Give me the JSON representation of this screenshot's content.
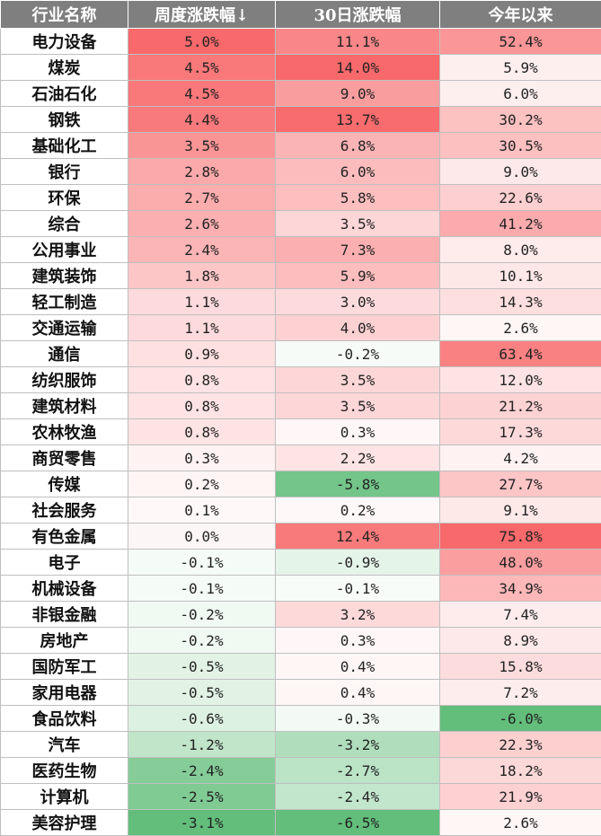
{
  "headers": [
    "行业名称",
    "周度涨跌幅↓",
    "30日涨跌幅",
    "今年以来"
  ],
  "colors": {
    "positive": "#f8696b",
    "negative": "#63be7b",
    "header_bg": "#7f7f7f"
  },
  "rows": [
    {
      "name": "电力设备",
      "week": "5.0%",
      "d30": "11.1%",
      "ytd": "52.4%"
    },
    {
      "name": "煤炭",
      "week": "4.5%",
      "d30": "14.0%",
      "ytd": "5.9%"
    },
    {
      "name": "石油石化",
      "week": "4.5%",
      "d30": "9.0%",
      "ytd": "6.0%"
    },
    {
      "name": "钢铁",
      "week": "4.4%",
      "d30": "13.7%",
      "ytd": "30.2%"
    },
    {
      "name": "基础化工",
      "week": "3.5%",
      "d30": "6.8%",
      "ytd": "30.5%"
    },
    {
      "name": "银行",
      "week": "2.8%",
      "d30": "6.0%",
      "ytd": "9.0%"
    },
    {
      "name": "环保",
      "week": "2.7%",
      "d30": "5.8%",
      "ytd": "22.6%"
    },
    {
      "name": "综合",
      "week": "2.6%",
      "d30": "3.5%",
      "ytd": "41.2%"
    },
    {
      "name": "公用事业",
      "week": "2.4%",
      "d30": "7.3%",
      "ytd": "8.0%"
    },
    {
      "name": "建筑装饰",
      "week": "1.8%",
      "d30": "5.9%",
      "ytd": "10.1%"
    },
    {
      "name": "轻工制造",
      "week": "1.1%",
      "d30": "3.0%",
      "ytd": "14.3%"
    },
    {
      "name": "交通运输",
      "week": "1.1%",
      "d30": "4.0%",
      "ytd": "2.6%"
    },
    {
      "name": "通信",
      "week": "0.9%",
      "d30": "-0.2%",
      "ytd": "63.4%"
    },
    {
      "name": "纺织服饰",
      "week": "0.8%",
      "d30": "3.5%",
      "ytd": "12.0%"
    },
    {
      "name": "建筑材料",
      "week": "0.8%",
      "d30": "3.5%",
      "ytd": "21.2%"
    },
    {
      "name": "农林牧渔",
      "week": "0.8%",
      "d30": "0.3%",
      "ytd": "17.3%"
    },
    {
      "name": "商贸零售",
      "week": "0.3%",
      "d30": "2.2%",
      "ytd": "4.2%"
    },
    {
      "name": "传媒",
      "week": "0.2%",
      "d30": "-5.8%",
      "ytd": "27.7%"
    },
    {
      "name": "社会服务",
      "week": "0.1%",
      "d30": "0.2%",
      "ytd": "9.1%"
    },
    {
      "name": "有色金属",
      "week": "0.0%",
      "d30": "12.4%",
      "ytd": "75.8%"
    },
    {
      "name": "电子",
      "week": "-0.1%",
      "d30": "-0.9%",
      "ytd": "48.0%"
    },
    {
      "name": "机械设备",
      "week": "-0.1%",
      "d30": "-0.1%",
      "ytd": "34.9%"
    },
    {
      "name": "非银金融",
      "week": "-0.2%",
      "d30": "3.2%",
      "ytd": "7.4%"
    },
    {
      "name": "房地产",
      "week": "-0.2%",
      "d30": "0.3%",
      "ytd": "8.9%"
    },
    {
      "name": "国防军工",
      "week": "-0.5%",
      "d30": "0.4%",
      "ytd": "15.8%"
    },
    {
      "name": "家用电器",
      "week": "-0.5%",
      "d30": "0.4%",
      "ytd": "7.2%"
    },
    {
      "name": "食品饮料",
      "week": "-0.6%",
      "d30": "-0.3%",
      "ytd": "-6.0%"
    },
    {
      "name": "汽车",
      "week": "-1.2%",
      "d30": "-3.2%",
      "ytd": "22.3%"
    },
    {
      "name": "医药生物",
      "week": "-2.4%",
      "d30": "-2.7%",
      "ytd": "18.2%"
    },
    {
      "name": "计算机",
      "week": "-2.5%",
      "d30": "-2.4%",
      "ytd": "21.9%"
    },
    {
      "name": "美容护理",
      "week": "-3.1%",
      "d30": "-6.5%",
      "ytd": "2.6%"
    }
  ]
}
